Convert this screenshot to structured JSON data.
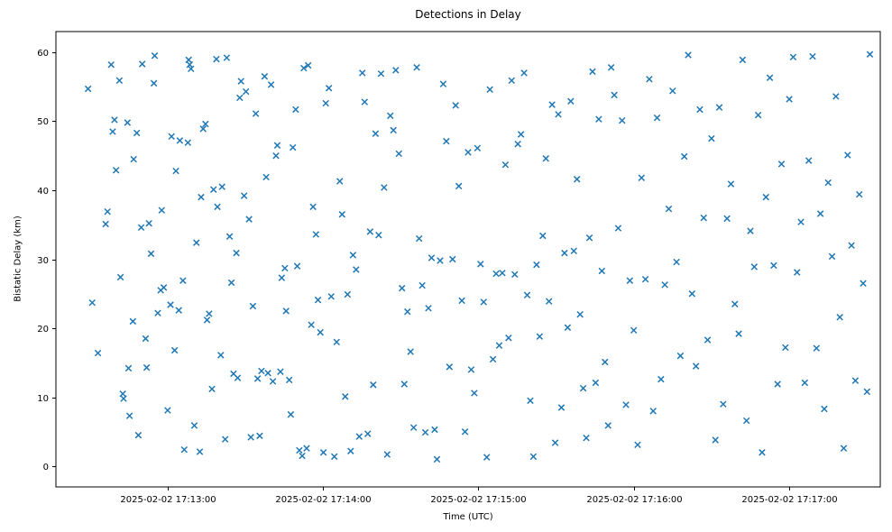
{
  "figure": {
    "background": "#ffffff",
    "spine_color": "#000000"
  },
  "chart_data": {
    "type": "scatter",
    "title": "Detections in Delay",
    "xlabel": "Time (UTC)",
    "ylabel": "Bistatic Delay (km)",
    "marker": "x",
    "marker_color": "#1f77b4",
    "grid": false,
    "legend": "none",
    "x_encoding": "seconds after 2025-02-02 17:12:00 UTC",
    "xlim": [
      17,
      335
    ],
    "ylim": [
      -3,
      63
    ],
    "x_ticks": [
      {
        "value": 60,
        "label": "2025-02-02 17:13:00"
      },
      {
        "value": 120,
        "label": "2025-02-02 17:14:00"
      },
      {
        "value": 180,
        "label": "2025-02-02 17:15:00"
      },
      {
        "value": 240,
        "label": "2025-02-02 17:16:00"
      },
      {
        "value": 300,
        "label": "2025-02-02 17:17:00"
      }
    ],
    "y_ticks": [
      0,
      10,
      20,
      30,
      40,
      50,
      60
    ],
    "points": [
      [
        29.4,
        54.7
      ],
      [
        31.0,
        23.7
      ],
      [
        33.2,
        16.4
      ],
      [
        36.2,
        35.1
      ],
      [
        36.9,
        36.9
      ],
      [
        38.3,
        58.2
      ],
      [
        38.9,
        48.5
      ],
      [
        39.6,
        50.2
      ],
      [
        40.2,
        42.9
      ],
      [
        41.5,
        55.9
      ],
      [
        41.9,
        27.4
      ],
      [
        42.8,
        10.5
      ],
      [
        43.1,
        9.8
      ],
      [
        44.6,
        49.8
      ],
      [
        45.0,
        14.2
      ],
      [
        45.4,
        7.3
      ],
      [
        46.7,
        21.0
      ],
      [
        47.0,
        44.5
      ],
      [
        48.2,
        48.3
      ],
      [
        48.8,
        4.5
      ],
      [
        49.9,
        34.6
      ],
      [
        50.3,
        58.3
      ],
      [
        51.6,
        18.5
      ],
      [
        52.0,
        14.3
      ],
      [
        52.9,
        35.2
      ],
      [
        53.7,
        30.8
      ],
      [
        54.8,
        55.5
      ],
      [
        55.1,
        59.5
      ],
      [
        56.3,
        22.2
      ],
      [
        57.4,
        25.5
      ],
      [
        57.8,
        37.1
      ],
      [
        58.6,
        25.9
      ],
      [
        60.1,
        8.1
      ],
      [
        61.2,
        23.4
      ],
      [
        61.6,
        47.8
      ],
      [
        62.8,
        16.8
      ],
      [
        63.3,
        42.8
      ],
      [
        64.4,
        22.6
      ],
      [
        64.8,
        47.2
      ],
      [
        66.0,
        26.9
      ],
      [
        66.5,
        2.4
      ],
      [
        67.9,
        46.9
      ],
      [
        68.2,
        58.9
      ],
      [
        68.6,
        58.2
      ],
      [
        69.1,
        57.6
      ],
      [
        70.4,
        5.9
      ],
      [
        71.2,
        32.4
      ],
      [
        72.5,
        2.1
      ],
      [
        73.0,
        39.0
      ],
      [
        73.8,
        48.9
      ],
      [
        74.7,
        49.6
      ],
      [
        75.3,
        21.2
      ],
      [
        76.1,
        22.1
      ],
      [
        77.2,
        11.2
      ],
      [
        77.8,
        40.1
      ],
      [
        78.9,
        59.0
      ],
      [
        79.3,
        37.6
      ],
      [
        80.6,
        16.1
      ],
      [
        81.1,
        40.5
      ],
      [
        82.3,
        3.9
      ],
      [
        82.9,
        59.2
      ],
      [
        84.0,
        33.3
      ],
      [
        84.7,
        26.6
      ],
      [
        85.5,
        13.4
      ],
      [
        86.6,
        30.9
      ],
      [
        87.1,
        12.8
      ],
      [
        87.9,
        53.4
      ],
      [
        88.4,
        55.8
      ],
      [
        89.6,
        39.2
      ],
      [
        90.3,
        54.3
      ],
      [
        91.5,
        35.8
      ],
      [
        92.2,
        4.2
      ],
      [
        93.0,
        23.2
      ],
      [
        94.1,
        51.1
      ],
      [
        94.8,
        12.7
      ],
      [
        95.6,
        4.4
      ],
      [
        96.3,
        13.8
      ],
      [
        97.5,
        56.5
      ],
      [
        98.1,
        41.9
      ],
      [
        98.8,
        13.5
      ],
      [
        100.0,
        55.3
      ],
      [
        100.7,
        12.3
      ],
      [
        101.9,
        45.0
      ],
      [
        102.4,
        46.5
      ],
      [
        103.6,
        13.7
      ],
      [
        104.1,
        27.3
      ],
      [
        105.3,
        28.7
      ],
      [
        105.8,
        22.5
      ],
      [
        107.0,
        12.5
      ],
      [
        107.6,
        7.5
      ],
      [
        108.4,
        46.2
      ],
      [
        109.5,
        51.7
      ],
      [
        110.1,
        29.0
      ],
      [
        110.9,
        2.3
      ],
      [
        112.0,
        1.5
      ],
      [
        112.6,
        57.7
      ],
      [
        113.7,
        2.6
      ],
      [
        114.3,
        58.1
      ],
      [
        115.5,
        20.5
      ],
      [
        116.2,
        37.6
      ],
      [
        117.3,
        33.6
      ],
      [
        118.1,
        24.1
      ],
      [
        119.0,
        19.4
      ],
      [
        120.2,
        2.0
      ],
      [
        121.1,
        52.6
      ],
      [
        122.3,
        54.8
      ],
      [
        123.2,
        24.6
      ],
      [
        124.4,
        1.4
      ],
      [
        125.3,
        18.0
      ],
      [
        126.5,
        41.3
      ],
      [
        127.4,
        36.5
      ],
      [
        128.6,
        10.1
      ],
      [
        129.5,
        24.9
      ],
      [
        130.7,
        2.2
      ],
      [
        131.6,
        30.6
      ],
      [
        132.8,
        28.5
      ],
      [
        134.0,
        4.3
      ],
      [
        135.2,
        57.0
      ],
      [
        136.1,
        52.8
      ],
      [
        137.3,
        4.7
      ],
      [
        138.2,
        34.0
      ],
      [
        139.4,
        11.8
      ],
      [
        140.3,
        48.2
      ],
      [
        141.5,
        33.5
      ],
      [
        142.4,
        56.9
      ],
      [
        143.6,
        40.4
      ],
      [
        144.8,
        1.7
      ],
      [
        146.0,
        50.8
      ],
      [
        147.2,
        48.7
      ],
      [
        148.1,
        57.4
      ],
      [
        149.3,
        45.3
      ],
      [
        150.5,
        25.8
      ],
      [
        151.4,
        11.9
      ],
      [
        152.6,
        22.4
      ],
      [
        153.8,
        16.6
      ],
      [
        155.0,
        5.6
      ],
      [
        156.2,
        57.8
      ],
      [
        157.1,
        33.0
      ],
      [
        158.3,
        26.2
      ],
      [
        159.5,
        4.9
      ],
      [
        160.7,
        22.9
      ],
      [
        161.9,
        30.2
      ],
      [
        163.1,
        5.3
      ],
      [
        164.0,
        1.0
      ],
      [
        165.2,
        29.8
      ],
      [
        166.4,
        55.4
      ],
      [
        167.6,
        47.1
      ],
      [
        168.8,
        14.4
      ],
      [
        170.0,
        30.0
      ],
      [
        171.2,
        52.3
      ],
      [
        172.4,
        40.6
      ],
      [
        173.6,
        24.0
      ],
      [
        174.8,
        5.0
      ],
      [
        176.0,
        45.5
      ],
      [
        177.2,
        14.0
      ],
      [
        178.4,
        10.6
      ],
      [
        179.6,
        46.1
      ],
      [
        180.8,
        29.3
      ],
      [
        182.0,
        23.8
      ],
      [
        183.2,
        1.3
      ],
      [
        184.4,
        54.6
      ],
      [
        185.6,
        15.5
      ],
      [
        186.8,
        27.9
      ],
      [
        188.0,
        17.5
      ],
      [
        189.2,
        28.0
      ],
      [
        190.4,
        43.7
      ],
      [
        191.6,
        18.6
      ],
      [
        192.8,
        55.9
      ],
      [
        194.0,
        27.8
      ],
      [
        195.2,
        46.7
      ],
      [
        196.4,
        48.1
      ],
      [
        197.6,
        57.0
      ],
      [
        198.8,
        24.8
      ],
      [
        200.0,
        9.5
      ],
      [
        201.2,
        1.4
      ],
      [
        202.4,
        29.2
      ],
      [
        203.6,
        18.8
      ],
      [
        204.8,
        33.4
      ],
      [
        206.0,
        44.6
      ],
      [
        207.2,
        23.9
      ],
      [
        208.4,
        52.4
      ],
      [
        209.6,
        3.4
      ],
      [
        210.8,
        51.0
      ],
      [
        212.0,
        8.5
      ],
      [
        213.2,
        30.9
      ],
      [
        214.4,
        20.1
      ],
      [
        215.6,
        52.9
      ],
      [
        216.8,
        31.2
      ],
      [
        218.0,
        41.6
      ],
      [
        219.2,
        22.0
      ],
      [
        220.4,
        11.3
      ],
      [
        221.6,
        4.1
      ],
      [
        222.8,
        33.1
      ],
      [
        224.0,
        57.2
      ],
      [
        225.2,
        12.1
      ],
      [
        226.4,
        50.3
      ],
      [
        227.6,
        28.3
      ],
      [
        228.8,
        15.1
      ],
      [
        230.0,
        5.9
      ],
      [
        231.2,
        57.8
      ],
      [
        232.4,
        53.8
      ],
      [
        233.9,
        34.5
      ],
      [
        235.4,
        50.1
      ],
      [
        236.9,
        8.9
      ],
      [
        238.4,
        26.9
      ],
      [
        239.9,
        19.7
      ],
      [
        241.4,
        3.1
      ],
      [
        242.9,
        41.8
      ],
      [
        244.4,
        27.1
      ],
      [
        245.9,
        56.1
      ],
      [
        247.4,
        8.0
      ],
      [
        248.9,
        50.5
      ],
      [
        250.4,
        12.6
      ],
      [
        251.9,
        26.3
      ],
      [
        253.4,
        37.3
      ],
      [
        254.9,
        54.4
      ],
      [
        256.4,
        29.6
      ],
      [
        257.9,
        16.0
      ],
      [
        259.4,
        44.9
      ],
      [
        260.9,
        59.6
      ],
      [
        262.4,
        25.0
      ],
      [
        263.9,
        14.5
      ],
      [
        265.4,
        51.7
      ],
      [
        266.9,
        36.0
      ],
      [
        268.4,
        18.3
      ],
      [
        269.9,
        47.5
      ],
      [
        271.4,
        3.8
      ],
      [
        272.9,
        52.0
      ],
      [
        274.4,
        9.0
      ],
      [
        275.9,
        35.9
      ],
      [
        277.4,
        40.9
      ],
      [
        278.9,
        23.5
      ],
      [
        280.4,
        19.2
      ],
      [
        281.9,
        58.9
      ],
      [
        283.4,
        6.6
      ],
      [
        284.9,
        34.1
      ],
      [
        286.4,
        28.9
      ],
      [
        287.9,
        50.9
      ],
      [
        289.4,
        2.0
      ],
      [
        290.9,
        39.0
      ],
      [
        292.4,
        56.3
      ],
      [
        293.9,
        29.1
      ],
      [
        295.4,
        11.9
      ],
      [
        296.9,
        43.8
      ],
      [
        298.4,
        17.2
      ],
      [
        299.9,
        53.2
      ],
      [
        301.4,
        59.3
      ],
      [
        302.9,
        28.1
      ],
      [
        304.4,
        35.4
      ],
      [
        305.9,
        12.1
      ],
      [
        307.4,
        44.3
      ],
      [
        308.9,
        59.4
      ],
      [
        310.4,
        17.1
      ],
      [
        311.9,
        36.6
      ],
      [
        313.4,
        8.3
      ],
      [
        314.9,
        41.1
      ],
      [
        316.4,
        30.4
      ],
      [
        317.9,
        53.6
      ],
      [
        319.4,
        21.6
      ],
      [
        320.9,
        2.6
      ],
      [
        322.4,
        45.1
      ],
      [
        323.9,
        32.0
      ],
      [
        325.4,
        12.4
      ],
      [
        326.9,
        39.4
      ],
      [
        328.4,
        26.5
      ],
      [
        329.9,
        10.8
      ],
      [
        331.0,
        59.7
      ]
    ]
  }
}
